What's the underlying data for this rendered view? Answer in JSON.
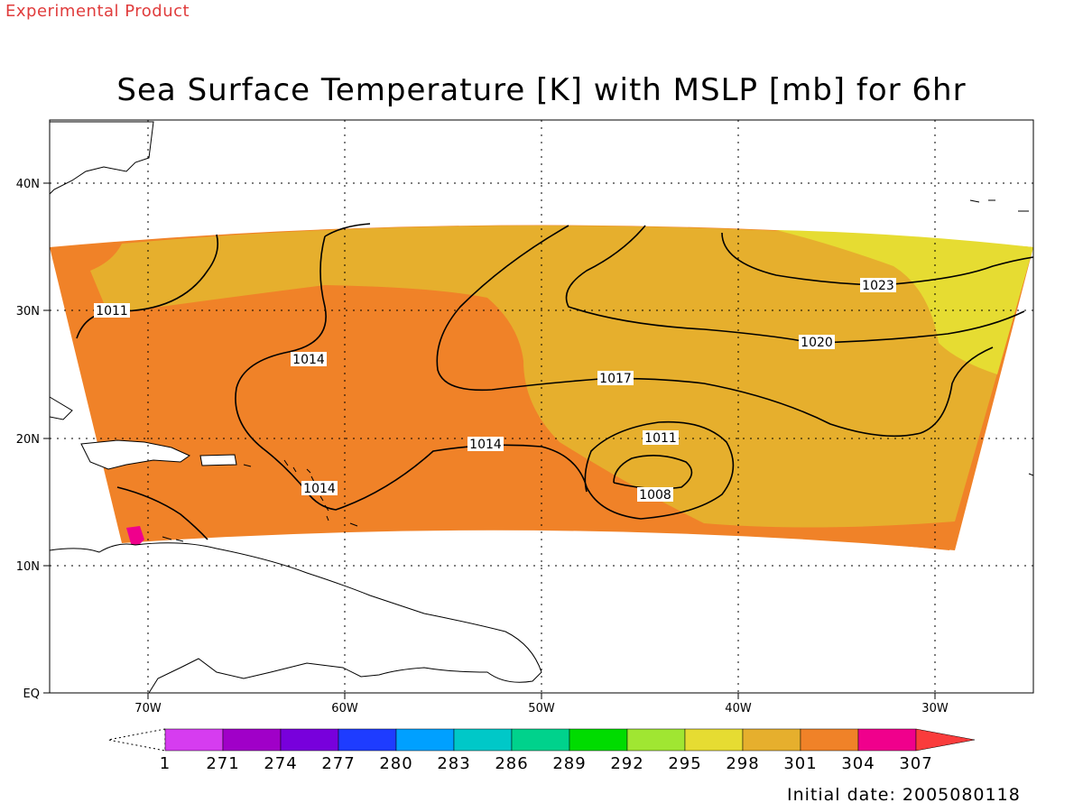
{
  "header": {
    "experimental_label": "Experimental Product",
    "title": "Sea Surface Temperature [K] with MSLP [mb] for 6hr"
  },
  "axes": {
    "lat_labels": [
      "EQ",
      "10N",
      "20N",
      "30N",
      "40N"
    ],
    "lon_labels": [
      "70W",
      "60W",
      "50W",
      "40W",
      "30W"
    ]
  },
  "colorbar": {
    "labels": [
      "1",
      "271",
      "274",
      "277",
      "280",
      "283",
      "286",
      "289",
      "292",
      "295",
      "298",
      "301",
      "304",
      "307"
    ],
    "colors": [
      "#d63cf0",
      "#a000c8",
      "#7800dc",
      "#1e3cff",
      "#00a0ff",
      "#00c8c8",
      "#00d28c",
      "#00dc00",
      "#a0e632",
      "#e6dc32",
      "#e6af2d",
      "#f08228",
      "#f0008c",
      "#fa3c3c"
    ]
  },
  "contours": {
    "labels": [
      "1011",
      "1014",
      "1014",
      "1014",
      "1017",
      "1011",
      "1008",
      "1020",
      "1023"
    ]
  },
  "footer": {
    "initial_date": "Initial date: 2005080118"
  }
}
